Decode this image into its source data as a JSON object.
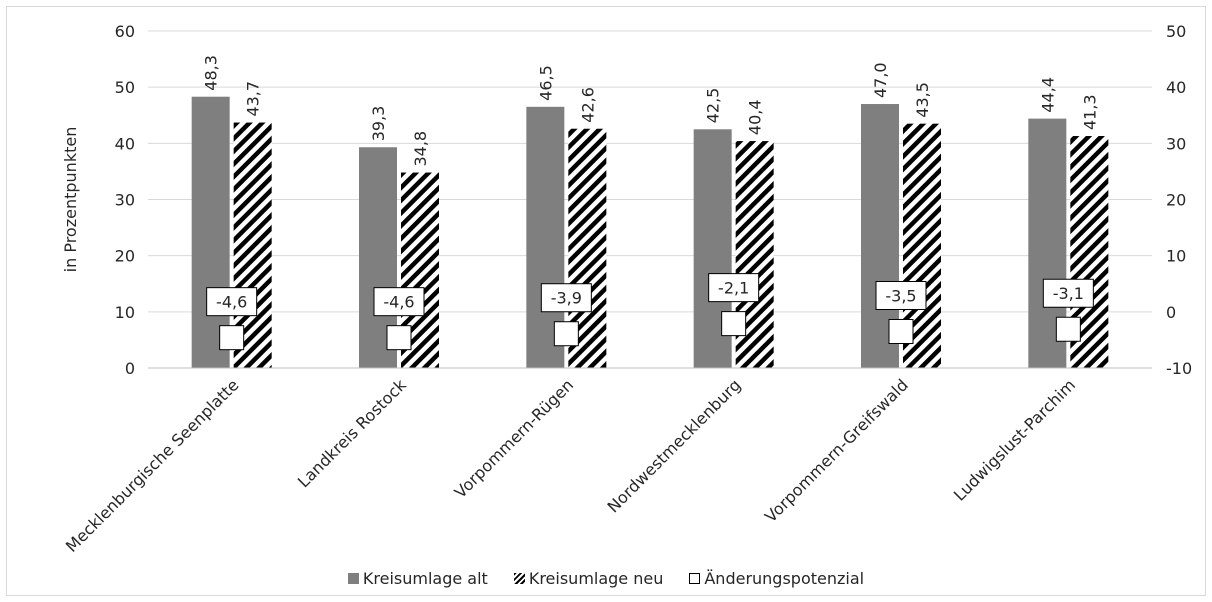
{
  "chart_data": {
    "type": "bar",
    "categories": [
      "Mecklenburgische Seenplatte",
      "Landkreis Rostock",
      "Vorpommern-Rügen",
      "Nordwestmecklenburg",
      "Vorpommern-Greifswald",
      "Ludwigslust-Parchim"
    ],
    "series": [
      {
        "name": "Kreisumlage alt",
        "axis": "left",
        "style": "solid-gray",
        "color": "#7f7f7f",
        "values": [
          48.3,
          39.3,
          46.5,
          42.5,
          47.0,
          44.4
        ],
        "labels": [
          "48,3",
          "39,3",
          "46,5",
          "42,5",
          "47,0",
          "44,4"
        ]
      },
      {
        "name": "Kreisumlage neu",
        "axis": "left",
        "style": "hatched",
        "color": "#000000",
        "values": [
          43.7,
          34.8,
          42.6,
          40.4,
          43.5,
          41.3
        ],
        "labels": [
          "43,7",
          "34,8",
          "42,6",
          "40,4",
          "43,5",
          "41,3"
        ]
      },
      {
        "name": "Änderungspotenzial",
        "axis": "right",
        "style": "marker-square",
        "color": "#ffffff",
        "values": [
          -4.6,
          -4.6,
          -3.9,
          -2.1,
          -3.5,
          -3.1
        ],
        "labels": [
          "-4,6",
          "-4,6",
          "-3,9",
          "-2,1",
          "-3,5",
          "-3,1"
        ]
      }
    ],
    "ylabel": "in Prozentpunkten",
    "ylim": [
      0,
      60
    ],
    "yticks": [
      "0",
      "10",
      "20",
      "30",
      "40",
      "50",
      "60"
    ],
    "y2lim": [
      -10,
      50
    ],
    "y2ticks": [
      "-10",
      "0",
      "10",
      "20",
      "30",
      "40",
      "50"
    ],
    "grid": true,
    "legend_position": "bottom"
  }
}
